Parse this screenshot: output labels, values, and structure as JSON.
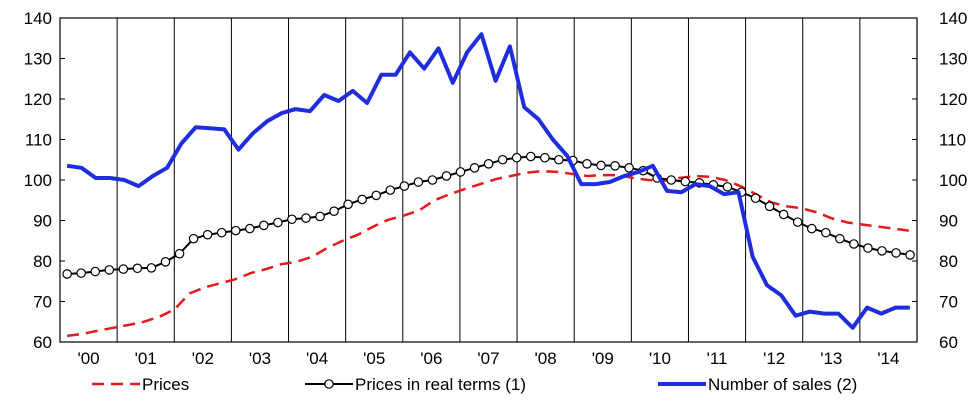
{
  "chart_data": {
    "type": "line",
    "title": "",
    "xlabel": "",
    "ylabel": "",
    "ylim": [
      60,
      140
    ],
    "yticks": [
      60,
      70,
      80,
      90,
      100,
      110,
      120,
      130,
      140
    ],
    "y_axes": "left and right (same scale)",
    "grid": "vertical lines between years",
    "legend_position": "bottom",
    "year_labels": [
      "'00",
      "'01",
      "'02",
      "'03",
      "'04",
      "'05",
      "'06",
      "'07",
      "'08",
      "'09",
      "'10",
      "'11",
      "'12",
      "'13",
      "'14"
    ],
    "x_start": "2000 Q1",
    "x_end": "2014 Q4",
    "colors": {
      "prices": "#e41a1c",
      "real": "#000000",
      "sales": "#1f2de0"
    },
    "series": [
      {
        "name": "Prices",
        "key": "prices",
        "style": "dashed",
        "values": [
          61.5,
          62,
          62.8,
          63.5,
          64.2,
          65,
          66.2,
          68,
          72,
          73.5,
          74.5,
          75.5,
          77,
          78,
          79.2,
          79.8,
          81,
          83.2,
          85,
          86.5,
          88.5,
          90.2,
          91.2,
          92.5,
          95,
          96.5,
          97.8,
          99,
          100.2,
          101,
          101.8,
          102.2,
          102,
          101.5,
          101,
          101.2,
          101.2,
          100.5,
          100,
          99.8,
          100.5,
          101,
          100.8,
          100,
          98.5,
          96.5,
          94.5,
          93.5,
          93,
          92,
          90.5,
          89.5,
          89,
          88.5,
          88,
          87.5
        ]
      },
      {
        "name": "Prices in real terms (1)",
        "key": "real",
        "style": "line-with-circle-markers",
        "values": [
          76.8,
          77,
          77.4,
          77.8,
          78,
          78.2,
          78.3,
          79.8,
          81.8,
          85.5,
          86.5,
          87,
          87.5,
          88,
          88.8,
          89.5,
          90.3,
          90.6,
          91,
          92.3,
          94,
          95.2,
          96.2,
          97.5,
          98.5,
          99.5,
          100,
          101,
          102,
          103,
          104,
          105,
          105.5,
          105.8,
          105.5,
          105,
          104.8,
          104,
          103.6,
          103.5,
          103,
          102.3,
          100.5,
          100,
          99.6,
          99.3,
          98.8,
          98.3,
          97,
          95.5,
          93.5,
          91.5,
          89.6,
          88,
          87,
          85.5,
          84.2,
          83.2,
          82.5,
          82,
          81.5
        ]
      },
      {
        "name": "Number of sales (2)",
        "key": "sales",
        "style": "thick",
        "values": [
          103.5,
          103,
          100.5,
          100.5,
          100,
          98.5,
          101,
          103,
          109,
          113,
          112.8,
          112.5,
          107.5,
          111.5,
          114.5,
          116.5,
          117.5,
          117,
          121,
          119.5,
          122,
          119,
          126,
          126,
          131.5,
          127.5,
          132.5,
          124,
          131.5,
          136,
          124.5,
          133,
          118,
          115,
          110,
          106,
          99,
          99,
          99.5,
          101,
          102,
          103.5,
          97.3,
          97,
          99,
          98.5,
          96.5,
          97,
          81,
          74,
          71.5,
          66.5,
          67.5,
          67,
          67,
          63.5,
          68.5,
          67,
          68.5,
          68.5
        ]
      }
    ]
  }
}
